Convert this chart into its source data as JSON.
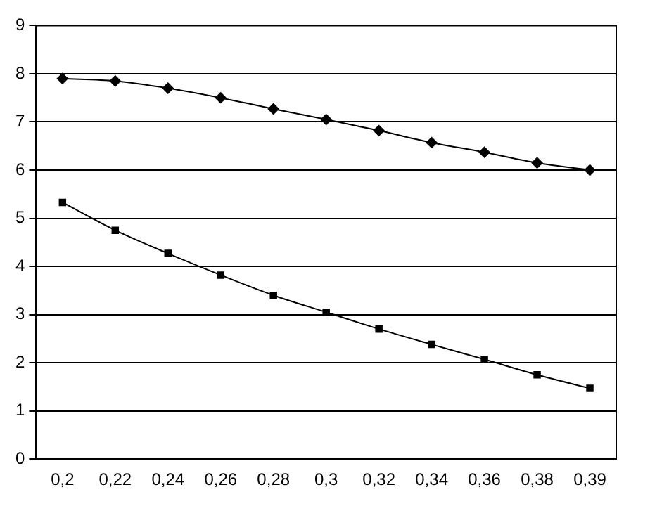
{
  "chart_data": {
    "type": "line",
    "categories": [
      "0,2",
      "0,22",
      "0,24",
      "0,26",
      "0,28",
      "0,3",
      "0,32",
      "0,34",
      "0,36",
      "0,38",
      "0,39"
    ],
    "series": [
      {
        "color": "#000000",
        "marker": "diamond",
        "values": [
          7.9,
          7.85,
          7.7,
          7.5,
          7.27,
          7.05,
          6.82,
          6.57,
          6.37,
          6.15,
          6.0
        ]
      },
      {
        "color": "#000000",
        "marker": "square",
        "values": [
          5.33,
          4.75,
          4.27,
          3.82,
          3.4,
          3.05,
          2.7,
          2.38,
          2.07,
          1.75,
          1.47
        ]
      }
    ],
    "ylim": [
      0,
      9
    ],
    "yticks": [
      0,
      1,
      2,
      3,
      4,
      5,
      6,
      7,
      8,
      9
    ],
    "grid": "y",
    "legend": false,
    "line_style": "solid"
  }
}
